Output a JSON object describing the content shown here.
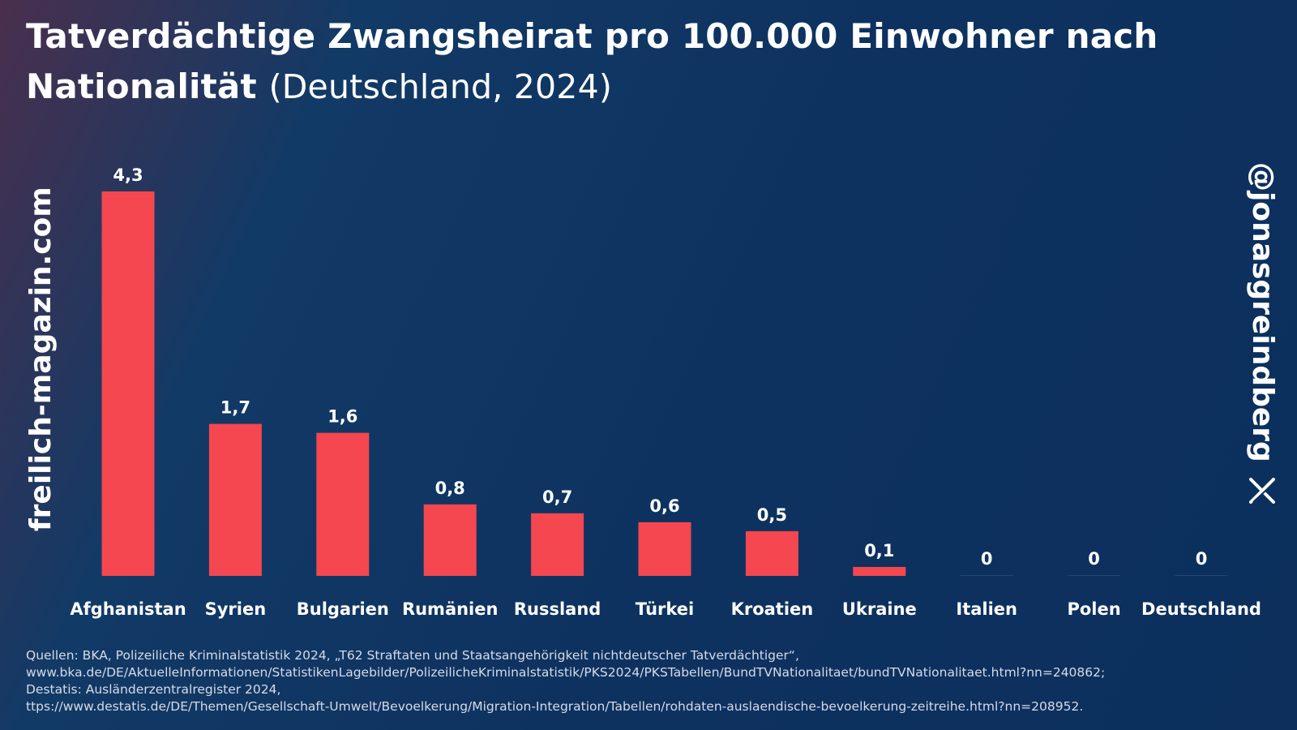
{
  "header": {
    "title_bold": "Tatverdächtige Zwangsheirat pro 100.000 Einwohner nach Nationalität",
    "title_paren": "(Deutschland, 2024)"
  },
  "watermark_left": "freilich-magazin.com",
  "watermark_right": {
    "handle": "@jonasgreindberg",
    "icon": "x-logo-icon"
  },
  "colors": {
    "bar": "#f4474f",
    "background": "#0e3260",
    "text": "#ffffff"
  },
  "chart_data": {
    "type": "bar",
    "title": "Tatverdächtige Zwangsheirat pro 100.000 Einwohner nach Nationalität (Deutschland, 2024)",
    "categories": [
      "Afghanistan",
      "Syrien",
      "Bulgarien",
      "Rumänien",
      "Russland",
      "Türkei",
      "Kroatien",
      "Ukraine",
      "Italien",
      "Polen",
      "Deutschland"
    ],
    "values": [
      4.3,
      1.7,
      1.6,
      0.8,
      0.7,
      0.6,
      0.5,
      0.1,
      0,
      0,
      0
    ],
    "value_labels": [
      "4,3",
      "1,7",
      "1,6",
      "0,8",
      "0,7",
      "0,6",
      "0,5",
      "0,1",
      "0",
      "0",
      "0"
    ],
    "xlabel": "",
    "ylabel": "",
    "ylim": [
      0,
      4.3
    ],
    "grid": false,
    "legend": "none"
  },
  "sources": [
    "Quellen: BKA, Polizeiliche Kriminalstatistik 2024, „T62 Straftaten und Staatsangehörigkeit nichtdeutscher Tatverdächtiger“,",
    "www.bka.de/DE/AktuelleInformationen/StatistikenLagebilder/PolizeilicheKriminalstatistik/PKS2024/PKSTabellen/BundTVNationalitaet/bundTVNationalitaet.html?nn=240862;",
    "Destatis: Ausländerzentralregister 2024,",
    "ttps://www.destatis.de/DE/Themen/Gesellschaft-Umwelt/Bevoelkerung/Migration-Integration/Tabellen/rohdaten-auslaendische-bevoelkerung-zeitreihe.html?nn=208952."
  ]
}
